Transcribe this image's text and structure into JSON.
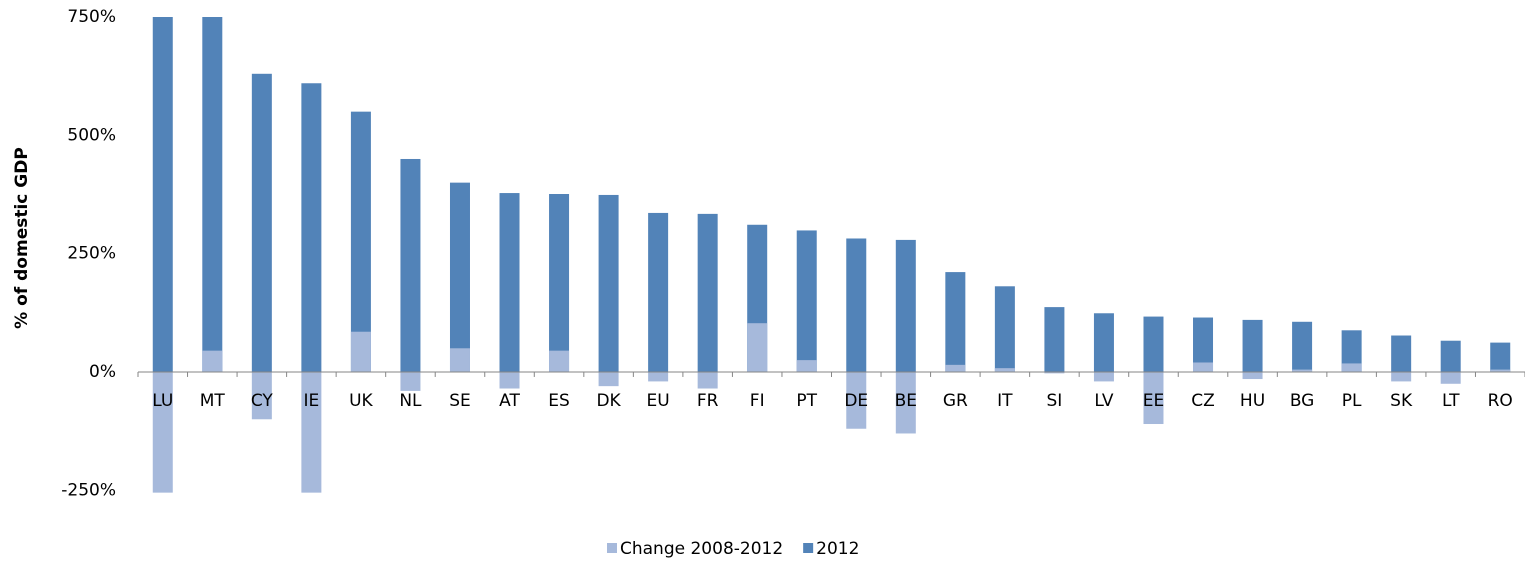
{
  "chart_data": {
    "type": "bar",
    "y_axis_label": "% of domestic GDP",
    "categories": [
      "LU",
      "MT",
      "CY",
      "IE",
      "UK",
      "NL",
      "SE",
      "AT",
      "ES",
      "DK",
      "EU",
      "FR",
      "FI",
      "PT",
      "DE",
      "BE",
      "GR",
      "IT",
      "SI",
      "LV",
      "EE",
      "CZ",
      "HU",
      "BG",
      "PL",
      "SK",
      "LT",
      "RO"
    ],
    "series": [
      {
        "name": "Change 2008-2012",
        "color": "#a6b9db",
        "values": [
          -255,
          45,
          -100,
          -255,
          85,
          -40,
          50,
          -35,
          45,
          -30,
          -20,
          -35,
          103,
          25,
          -120,
          -130,
          15,
          8,
          -3,
          -20,
          -110,
          20,
          -15,
          5,
          18,
          -20,
          -25,
          5
        ]
      },
      {
        "name": "2012",
        "color": "#5283b8",
        "values": [
          750,
          750,
          630,
          610,
          550,
          450,
          400,
          378,
          376,
          374,
          336,
          334,
          311,
          299,
          282,
          279,
          211,
          181,
          137,
          124,
          117,
          115,
          110,
          106,
          88,
          77,
          66,
          62
        ]
      }
    ],
    "ylim": [
      -260,
      750
    ],
    "yticks": [
      {
        "value": -250,
        "label": "-250%"
      },
      {
        "value": 0,
        "label": "0%"
      },
      {
        "value": 250,
        "label": "250%"
      },
      {
        "value": 500,
        "label": "500%"
      },
      {
        "value": 750,
        "label": "750%"
      }
    ],
    "legend": "bottom"
  }
}
